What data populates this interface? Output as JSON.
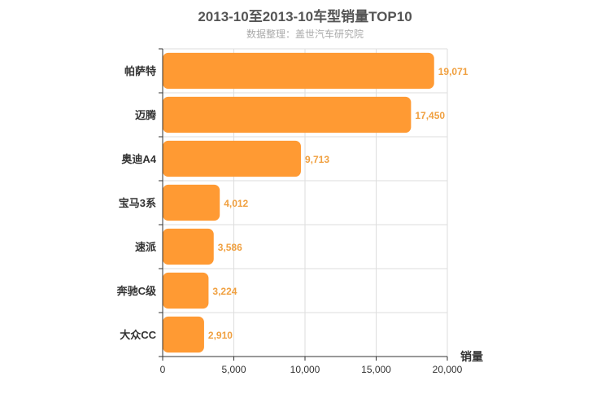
{
  "chart_data": {
    "type": "bar",
    "orientation": "horizontal",
    "title": "2013-10至2013-10车型销量TOP10",
    "subtitle": "数据整理：盖世汽车研究院",
    "categories": [
      "帕萨特",
      "迈腾",
      "奥迪A4",
      "宝马3系",
      "速派",
      "奔驰C级",
      "大众CC"
    ],
    "values": [
      19071,
      17450,
      9713,
      4012,
      3586,
      3224,
      2910
    ],
    "value_labels": [
      "19,071",
      "17,450",
      "9,713",
      "4,012",
      "3,586",
      "3,224",
      "2,910"
    ],
    "xlabel": "销量",
    "ylabel": "",
    "xlim": [
      0,
      20000
    ],
    "xticks": [
      0,
      5000,
      10000,
      15000,
      20000
    ],
    "xtick_labels": [
      "0",
      "5,000",
      "10,000",
      "15,000",
      "20,000"
    ],
    "grid": true,
    "colors": {
      "bar": "#ff9a33",
      "value_label": "#f0a040",
      "grid": "#dddddd",
      "axis": "#333333"
    }
  }
}
